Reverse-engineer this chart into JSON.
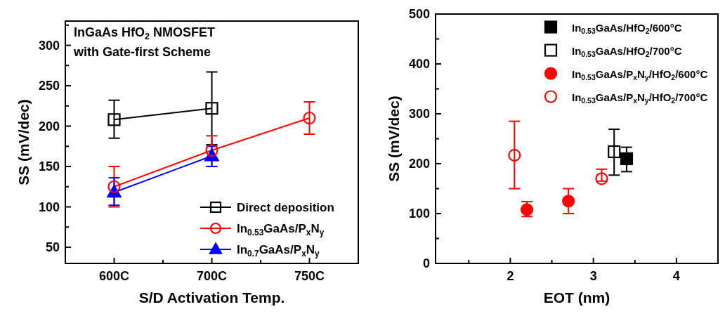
{
  "chart_data": [
    {
      "type": "line",
      "xlabel": "S/D Activation Temp.",
      "ylabel": "SS (mV/dec)",
      "categories": [
        "600C",
        "700C",
        "750C"
      ],
      "ylim": [
        30,
        330
      ],
      "yticks": [
        50,
        {
          "value": 75,
          "label": null
        },
        100,
        {
          "value": 125,
          "label": null
        },
        150,
        {
          "value": 175,
          "label": null
        },
        200,
        {
          "value": 225,
          "label": null
        },
        250,
        {
          "value": 275,
          "label": null
        },
        300,
        {
          "value": 325,
          "label": null
        }
      ],
      "annotations": [
        "InGaAs HfO$_{2}$ NMOSFET",
        "with Gate-first Scheme"
      ],
      "legend": "bottom right",
      "grid": false,
      "line_style": "solid",
      "series": [
        {
          "name": "Direct deposition",
          "color": "#000000",
          "marker": "square-open",
          "values": [
            208,
            222,
            null
          ],
          "errors": [
            [
              185,
              232
            ],
            [
              177,
              267
            ],
            null
          ]
        },
        {
          "name": "In$_{0.53}$GaAs/P$_{x}$N$_{y}$",
          "color": "#ff0000",
          "marker": "circle-open",
          "values": [
            125,
            170,
            210
          ],
          "errors": [
            [
              100,
              150
            ],
            [
              150,
              188
            ],
            [
              190,
              230
            ]
          ]
        },
        {
          "name": "In$_{0.7}$GaAs/P$_{x}$N$_{y}$",
          "color": "#0000ff",
          "marker": "triangle",
          "values": [
            118,
            163,
            null
          ],
          "errors": [
            [
              102,
              136
            ],
            [
              150,
              175
            ],
            null
          ]
        }
      ]
    },
    {
      "type": "scatter",
      "xlabel": "EOT (nm)",
      "ylabel": "SS (mV/dec)",
      "xlim": [
        1.1,
        4.5
      ],
      "xticks": [
        {
          "value": 1.5,
          "label": null
        },
        2,
        {
          "value": 2.5,
          "label": null
        },
        3,
        {
          "value": 3.5,
          "label": null
        },
        4
      ],
      "ylim": [
        0,
        500
      ],
      "yticks": [
        0,
        {
          "value": 50,
          "label": null
        },
        100,
        {
          "value": 150,
          "label": null
        },
        200,
        {
          "value": 250,
          "label": null
        },
        300,
        {
          "value": 350,
          "label": null
        },
        400,
        {
          "value": 450,
          "label": null
        },
        500
      ],
      "legend": "top right",
      "grid": false,
      "series": [
        {
          "name": "In$_{0.53}$GaAs/HfO$_{2}$/600°C",
          "color": "#000000",
          "marker": "square",
          "x": [
            3.4
          ],
          "values": [
            210
          ],
          "errors": [
            [
              184,
              233
            ]
          ]
        },
        {
          "name": "In$_{0.53}$GaAs/HfO$_{2}$/700°C",
          "color": "#000000",
          "marker": "square-open",
          "x": [
            3.25
          ],
          "values": [
            224
          ],
          "errors": [
            [
              177,
              269
            ]
          ]
        },
        {
          "name": "In$_{0.53}$GaAs/P$_{x}$N$_{y}$/HfO$_{2}$/600°C",
          "color": "#ff0000",
          "marker": "circle",
          "x": [
            2.2,
            2.7
          ],
          "values": [
            108,
            125
          ],
          "errors": [
            [
              94,
              124
            ],
            [
              100,
              150
            ]
          ]
        },
        {
          "name": "In$_{0.53}$GaAs/P$_{x}$N$_{y}$/HfO$_{2}$/700°C",
          "color": "#ff0000",
          "marker": "circle-open",
          "x": [
            2.05,
            3.1
          ],
          "values": [
            217,
            170
          ],
          "errors": [
            [
              150,
              285
            ],
            [
              165,
              189
            ]
          ]
        }
      ]
    }
  ]
}
